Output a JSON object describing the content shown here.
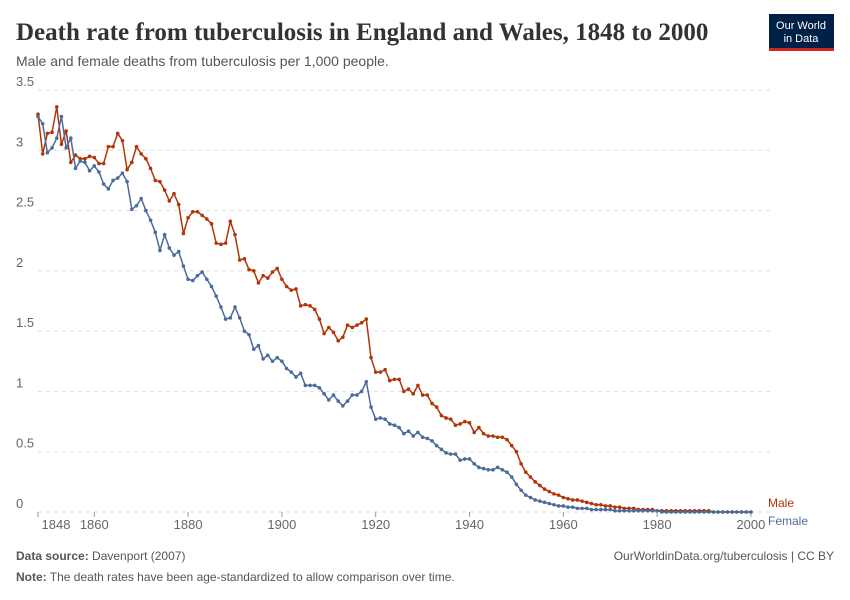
{
  "chart_data": {
    "type": "line",
    "title": "Death rate from tuberculosis in England and Wales, 1848 to 2000",
    "subtitle": "Male and female deaths from tuberculosis per 1,000 people.",
    "logo": [
      "Our World",
      "in Data"
    ],
    "source_label": "Data source:",
    "source": "Davenport (2007)",
    "url": "OurWorldinData.org/tuberculosis | CC BY",
    "note_label": "Note:",
    "note": "The death rates have been age-standardized to allow comparison over time.",
    "grid": true,
    "xlim": [
      1848,
      2003
    ],
    "xticks": [
      1848,
      1860,
      1880,
      1900,
      1920,
      1940,
      1960,
      1980,
      2000
    ],
    "ylim": [
      0,
      3.5
    ],
    "yticks": [
      0,
      0.5,
      1,
      1.5,
      2,
      2.5,
      3,
      3.5
    ],
    "x": [
      1848,
      1849,
      1850,
      1851,
      1852,
      1853,
      1854,
      1855,
      1856,
      1857,
      1858,
      1859,
      1860,
      1861,
      1862,
      1863,
      1864,
      1865,
      1866,
      1867,
      1868,
      1869,
      1870,
      1871,
      1872,
      1873,
      1874,
      1875,
      1876,
      1877,
      1878,
      1879,
      1880,
      1881,
      1882,
      1883,
      1884,
      1885,
      1886,
      1887,
      1888,
      1889,
      1890,
      1891,
      1892,
      1893,
      1894,
      1895,
      1896,
      1897,
      1898,
      1899,
      1900,
      1901,
      1902,
      1903,
      1904,
      1905,
      1906,
      1907,
      1908,
      1909,
      1910,
      1911,
      1912,
      1913,
      1914,
      1915,
      1916,
      1917,
      1918,
      1919,
      1920,
      1921,
      1922,
      1923,
      1924,
      1925,
      1926,
      1927,
      1928,
      1929,
      1930,
      1931,
      1932,
      1933,
      1934,
      1935,
      1936,
      1937,
      1938,
      1939,
      1940,
      1941,
      1942,
      1943,
      1944,
      1945,
      1946,
      1947,
      1948,
      1949,
      1950,
      1951,
      1952,
      1953,
      1954,
      1955,
      1956,
      1957,
      1958,
      1959,
      1960,
      1961,
      1962,
      1963,
      1964,
      1965,
      1966,
      1967,
      1968,
      1969,
      1970,
      1971,
      1972,
      1973,
      1974,
      1975,
      1976,
      1977,
      1978,
      1979,
      1980,
      1981,
      1982,
      1983,
      1984,
      1985,
      1986,
      1987,
      1988,
      1989,
      1990,
      1991,
      1992,
      1993,
      1994,
      1995,
      1996,
      1997,
      1998,
      1999,
      2000
    ],
    "series": [
      {
        "name": "Male",
        "color": "#b13507",
        "values": [
          3.3,
          2.97,
          3.14,
          3.15,
          3.36,
          3.05,
          3.16,
          2.9,
          2.96,
          2.93,
          2.93,
          2.95,
          2.94,
          2.89,
          2.89,
          3.03,
          3.03,
          3.14,
          3.08,
          2.84,
          2.9,
          3.03,
          2.97,
          2.93,
          2.85,
          2.75,
          2.74,
          2.67,
          2.58,
          2.64,
          2.55,
          2.31,
          2.44,
          2.49,
          2.49,
          2.46,
          2.43,
          2.39,
          2.23,
          2.22,
          2.23,
          2.41,
          2.3,
          2.09,
          2.1,
          2.01,
          2.0,
          1.9,
          1.96,
          1.94,
          1.99,
          2.02,
          1.93,
          1.87,
          1.84,
          1.85,
          1.71,
          1.72,
          1.71,
          1.68,
          1.6,
          1.48,
          1.53,
          1.49,
          1.42,
          1.45,
          1.55,
          1.53,
          1.55,
          1.57,
          1.6,
          1.28,
          1.16,
          1.16,
          1.18,
          1.09,
          1.1,
          1.1,
          1.0,
          1.02,
          0.98,
          1.05,
          0.97,
          0.97,
          0.9,
          0.87,
          0.8,
          0.78,
          0.77,
          0.72,
          0.73,
          0.75,
          0.74,
          0.66,
          0.7,
          0.65,
          0.63,
          0.63,
          0.62,
          0.62,
          0.6,
          0.55,
          0.5,
          0.4,
          0.33,
          0.29,
          0.25,
          0.22,
          0.19,
          0.17,
          0.15,
          0.14,
          0.12,
          0.11,
          0.1,
          0.1,
          0.09,
          0.08,
          0.07,
          0.06,
          0.06,
          0.05,
          0.05,
          0.04,
          0.04,
          0.03,
          0.03,
          0.03,
          0.02,
          0.02,
          0.02,
          0.02,
          0.01,
          0.01,
          0.01,
          0.01,
          0.01,
          0.01,
          0.01,
          0.01,
          0.01,
          0.01,
          0.01,
          0.01,
          0,
          0,
          0,
          0,
          0,
          0,
          0,
          0,
          0
        ]
      },
      {
        "name": "Female",
        "color": "#4c6a9c",
        "values": [
          3.28,
          3.22,
          2.98,
          3.02,
          3.1,
          3.28,
          3.02,
          3.1,
          2.85,
          2.91,
          2.9,
          2.83,
          2.87,
          2.82,
          2.72,
          2.68,
          2.75,
          2.77,
          2.81,
          2.74,
          2.51,
          2.54,
          2.6,
          2.5,
          2.42,
          2.32,
          2.17,
          2.3,
          2.19,
          2.13,
          2.16,
          2.04,
          1.93,
          1.92,
          1.96,
          1.99,
          1.93,
          1.87,
          1.79,
          1.7,
          1.6,
          1.61,
          1.7,
          1.61,
          1.5,
          1.47,
          1.35,
          1.38,
          1.27,
          1.3,
          1.25,
          1.28,
          1.25,
          1.19,
          1.16,
          1.12,
          1.15,
          1.05,
          1.05,
          1.05,
          1.03,
          0.98,
          0.93,
          0.97,
          0.92,
          0.88,
          0.92,
          0.97,
          0.97,
          1.0,
          1.08,
          0.87,
          0.77,
          0.78,
          0.77,
          0.73,
          0.72,
          0.7,
          0.65,
          0.67,
          0.63,
          0.66,
          0.62,
          0.61,
          0.59,
          0.55,
          0.52,
          0.49,
          0.48,
          0.48,
          0.43,
          0.44,
          0.44,
          0.4,
          0.37,
          0.36,
          0.35,
          0.35,
          0.37,
          0.35,
          0.33,
          0.29,
          0.23,
          0.18,
          0.14,
          0.12,
          0.1,
          0.09,
          0.08,
          0.07,
          0.06,
          0.05,
          0.05,
          0.04,
          0.04,
          0.03,
          0.03,
          0.03,
          0.02,
          0.02,
          0.02,
          0.02,
          0.02,
          0.01,
          0.01,
          0.01,
          0.01,
          0.01,
          0.01,
          0.01,
          0.01,
          0.01,
          0.01,
          0,
          0,
          0,
          0,
          0,
          0,
          0,
          0,
          0,
          0,
          0,
          0,
          0,
          0,
          0,
          0,
          0,
          0,
          0,
          0
        ]
      }
    ]
  }
}
